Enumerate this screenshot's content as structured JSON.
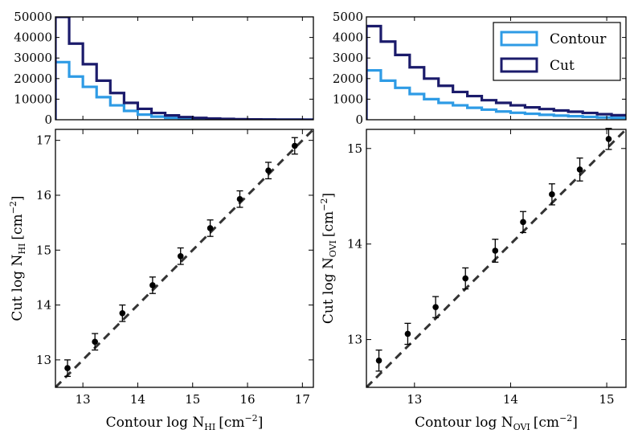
{
  "chart_data": [
    {
      "type": "line",
      "panel": "top-left histogram",
      "xlim": [
        12.5,
        17.2
      ],
      "ylim": [
        0,
        50000
      ],
      "yticks": [
        "0",
        "10000",
        "20000",
        "30000",
        "40000",
        "50000"
      ],
      "bin_edges": [
        12.5,
        12.75,
        13.0,
        13.25,
        13.5,
        13.75,
        14.0,
        14.25,
        14.5,
        14.75,
        15.0,
        15.25,
        15.5,
        15.75,
        16.0,
        16.25,
        16.5,
        16.75,
        17.0,
        17.2
      ],
      "series": [
        {
          "name": "Contour",
          "color": "#2e9be5",
          "values": [
            28000,
            21000,
            16000,
            11000,
            7000,
            4300,
            2500,
            1500,
            900,
            600,
            400,
            250,
            160,
            100,
            60,
            40,
            25,
            15,
            10
          ]
        },
        {
          "name": "Cut",
          "color": "#1b1b6b",
          "values": [
            50000,
            37000,
            27000,
            19000,
            13000,
            8200,
            5300,
            3300,
            2100,
            1300,
            900,
            600,
            400,
            260,
            170,
            110,
            70,
            40,
            25
          ]
        }
      ]
    },
    {
      "type": "line",
      "panel": "top-right histogram",
      "xlim": [
        12.5,
        15.2
      ],
      "ylim": [
        0,
        5000
      ],
      "yticks": [
        "0",
        "1000",
        "2000",
        "3000",
        "4000",
        "5000"
      ],
      "bin_edges": [
        12.5,
        12.65,
        12.8,
        12.95,
        13.1,
        13.25,
        13.4,
        13.55,
        13.7,
        13.85,
        14.0,
        14.15,
        14.3,
        14.45,
        14.6,
        14.75,
        14.9,
        15.05,
        15.2
      ],
      "series": [
        {
          "name": "Contour",
          "color": "#2e9be5",
          "values": [
            2400,
            1900,
            1550,
            1250,
            1000,
            820,
            700,
            580,
            490,
            400,
            340,
            290,
            240,
            200,
            170,
            140,
            110,
            90
          ]
        },
        {
          "name": "Cut",
          "color": "#1b1b6b",
          "values": [
            4550,
            3800,
            3150,
            2550,
            2000,
            1650,
            1350,
            1150,
            950,
            820,
            700,
            600,
            520,
            450,
            390,
            330,
            270,
            220
          ]
        }
      ],
      "legend": {
        "position": "top-right",
        "entries": [
          "Contour",
          "Cut"
        ]
      }
    },
    {
      "type": "scatter",
      "panel": "bottom-left",
      "xlim": [
        12.5,
        17.2
      ],
      "ylim": [
        12.5,
        17.2
      ],
      "xticks": [
        "13",
        "14",
        "15",
        "16",
        "17"
      ],
      "yticks": [
        "13",
        "14",
        "15",
        "16",
        "17"
      ],
      "xlabel": {
        "main": "Contour log N",
        "sub": "HI",
        "unit": "[cm",
        "sup": "−2",
        "close": "]"
      },
      "ylabel": {
        "main": "Cut log N",
        "sub": "HI",
        "unit": "[cm",
        "sup": "−2",
        "close": "]"
      },
      "reference_line": "y = x (dashed)",
      "points": [
        {
          "x": 12.72,
          "y": 12.85,
          "err": 0.15
        },
        {
          "x": 13.22,
          "y": 13.33,
          "err": 0.15
        },
        {
          "x": 13.72,
          "y": 13.85,
          "err": 0.15
        },
        {
          "x": 14.27,
          "y": 14.36,
          "err": 0.15
        },
        {
          "x": 14.78,
          "y": 14.89,
          "err": 0.15
        },
        {
          "x": 15.32,
          "y": 15.4,
          "err": 0.15
        },
        {
          "x": 15.86,
          "y": 15.93,
          "err": 0.15
        },
        {
          "x": 16.38,
          "y": 16.45,
          "err": 0.15
        },
        {
          "x": 16.86,
          "y": 16.9,
          "err": 0.15
        }
      ]
    },
    {
      "type": "scatter",
      "panel": "bottom-right",
      "xlim": [
        12.5,
        15.2
      ],
      "ylim": [
        12.5,
        15.2
      ],
      "xticks": [
        "13",
        "14",
        "15"
      ],
      "yticks": [
        "13",
        "14",
        "15"
      ],
      "xlabel": {
        "main": "Contour log N",
        "sub": "OVI",
        "unit": "[cm",
        "sup": "−2",
        "close": "]"
      },
      "ylabel": {
        "main": "Cut log N",
        "sub": "OVI",
        "unit": "[cm",
        "sup": "−2",
        "close": "]"
      },
      "reference_line": "y = x (dashed)",
      "points": [
        {
          "x": 12.63,
          "y": 12.78,
          "err": 0.11
        },
        {
          "x": 12.93,
          "y": 13.06,
          "err": 0.11
        },
        {
          "x": 13.22,
          "y": 13.34,
          "err": 0.11
        },
        {
          "x": 13.53,
          "y": 13.64,
          "err": 0.11
        },
        {
          "x": 13.84,
          "y": 13.93,
          "err": 0.12
        },
        {
          "x": 14.13,
          "y": 14.23,
          "err": 0.11
        },
        {
          "x": 14.43,
          "y": 14.52,
          "err": 0.11
        },
        {
          "x": 14.72,
          "y": 14.78,
          "err": 0.12
        },
        {
          "x": 15.02,
          "y": 15.1,
          "err": 0.11
        }
      ]
    }
  ]
}
